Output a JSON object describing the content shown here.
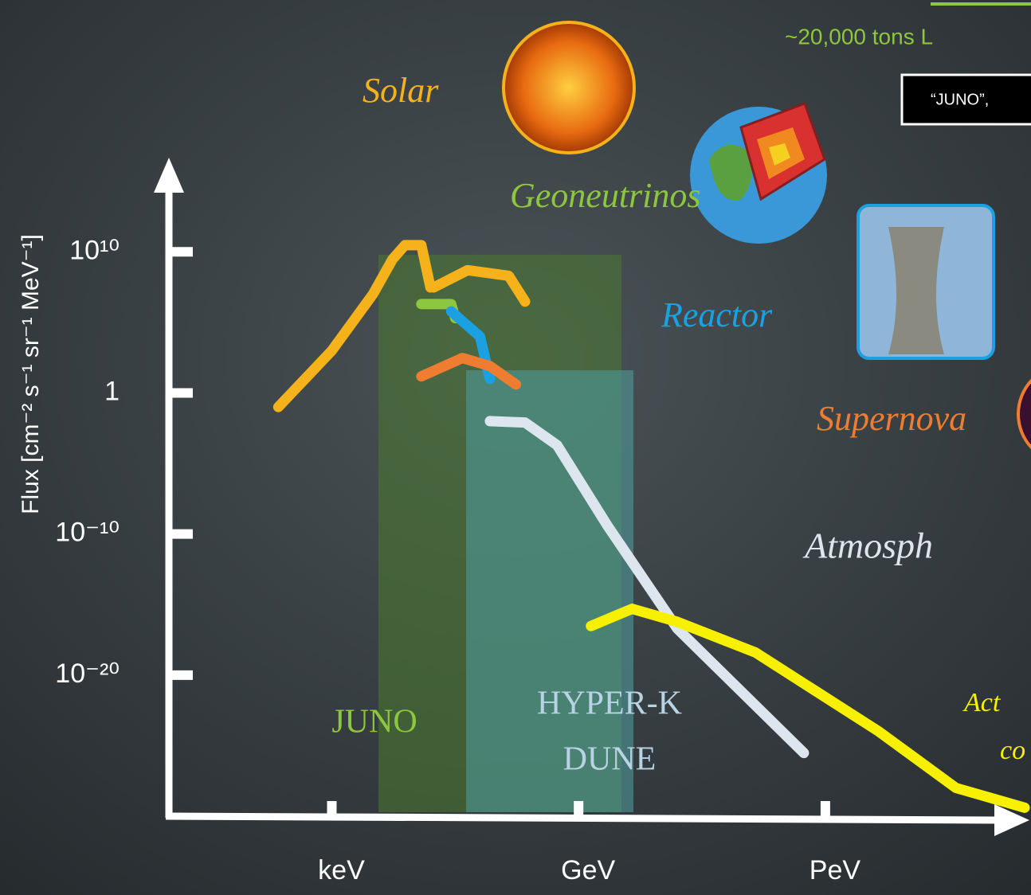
{
  "chart_data": {
    "type": "line",
    "y_label": "Flux [cm⁻² s⁻¹ sr⁻¹ MeV⁻¹]",
    "log_x": true,
    "log_y": true,
    "xlim": [
      1e-07,
      100000000000000.0
    ],
    "xticks": [
      {
        "value": 0.001,
        "label": "keV"
      },
      {
        "value": 1000,
        "label": "GeV"
      },
      {
        "value": 1000000000,
        "label": "PeV"
      }
    ],
    "ylim": [
      1e-30,
      1e+16
    ],
    "yticks": [
      {
        "value": 10000000000.0,
        "label": "10¹⁰"
      },
      1,
      {
        "value": 1e-10,
        "label": "10⁻¹⁰"
      },
      {
        "value": 1e-20,
        "label": "10⁻²⁰"
      }
    ],
    "series": [
      {
        "name": "Solar",
        "color": "#f5b21b",
        "x": [
          5e-05,
          0.001,
          0.01,
          0.03,
          0.06,
          0.15,
          0.25,
          0.3,
          0.3,
          2,
          20,
          50
        ],
        "values": [
          0.1,
          1000,
          10000000,
          3000000000,
          30000000000,
          30000000000,
          30000000,
          null,
          30000000,
          500000000,
          200000000,
          3000000
        ]
      },
      {
        "name": "Geoneutrinos",
        "color": "#8dc63f",
        "x": [
          0.15,
          0.8,
          1
        ],
        "values": [
          2000000,
          2000000,
          200000
        ]
      },
      {
        "name": "Reactor",
        "color": "#1ba1e2",
        "x": [
          0.8,
          4,
          7
        ],
        "values": [
          600000,
          10000,
          10
        ]
      },
      {
        "name": "Supernova",
        "color": "#ee7d31",
        "x": [
          0.15,
          1.5,
          7,
          30
        ],
        "values": [
          15,
          300,
          80,
          4
        ]
      },
      {
        "name": "Atmosph",
        "color": "#dde6ee",
        "x": [
          7,
          50,
          300,
          5000,
          250000,
          300000000
        ],
        "values": [
          0.01,
          0.008,
          0.0002,
          4e-10,
          2e-17,
          3e-26
        ]
      },
      {
        "name": "Act",
        "color": "#f7f000",
        "x": [
          2000,
          20000,
          250000,
          20000000,
          20000000000,
          1500000000000,
          70000000000000
        ],
        "values": [
          3e-17,
          5e-16,
          6e-17,
          4e-19,
          1e-24,
          1e-28,
          4e-30
        ]
      }
    ],
    "annotations": [
      "co",
      "JUNO",
      "HYPER-K",
      "DUNE",
      "~20,000 tons L",
      "“JUNO”,"
    ]
  }
}
